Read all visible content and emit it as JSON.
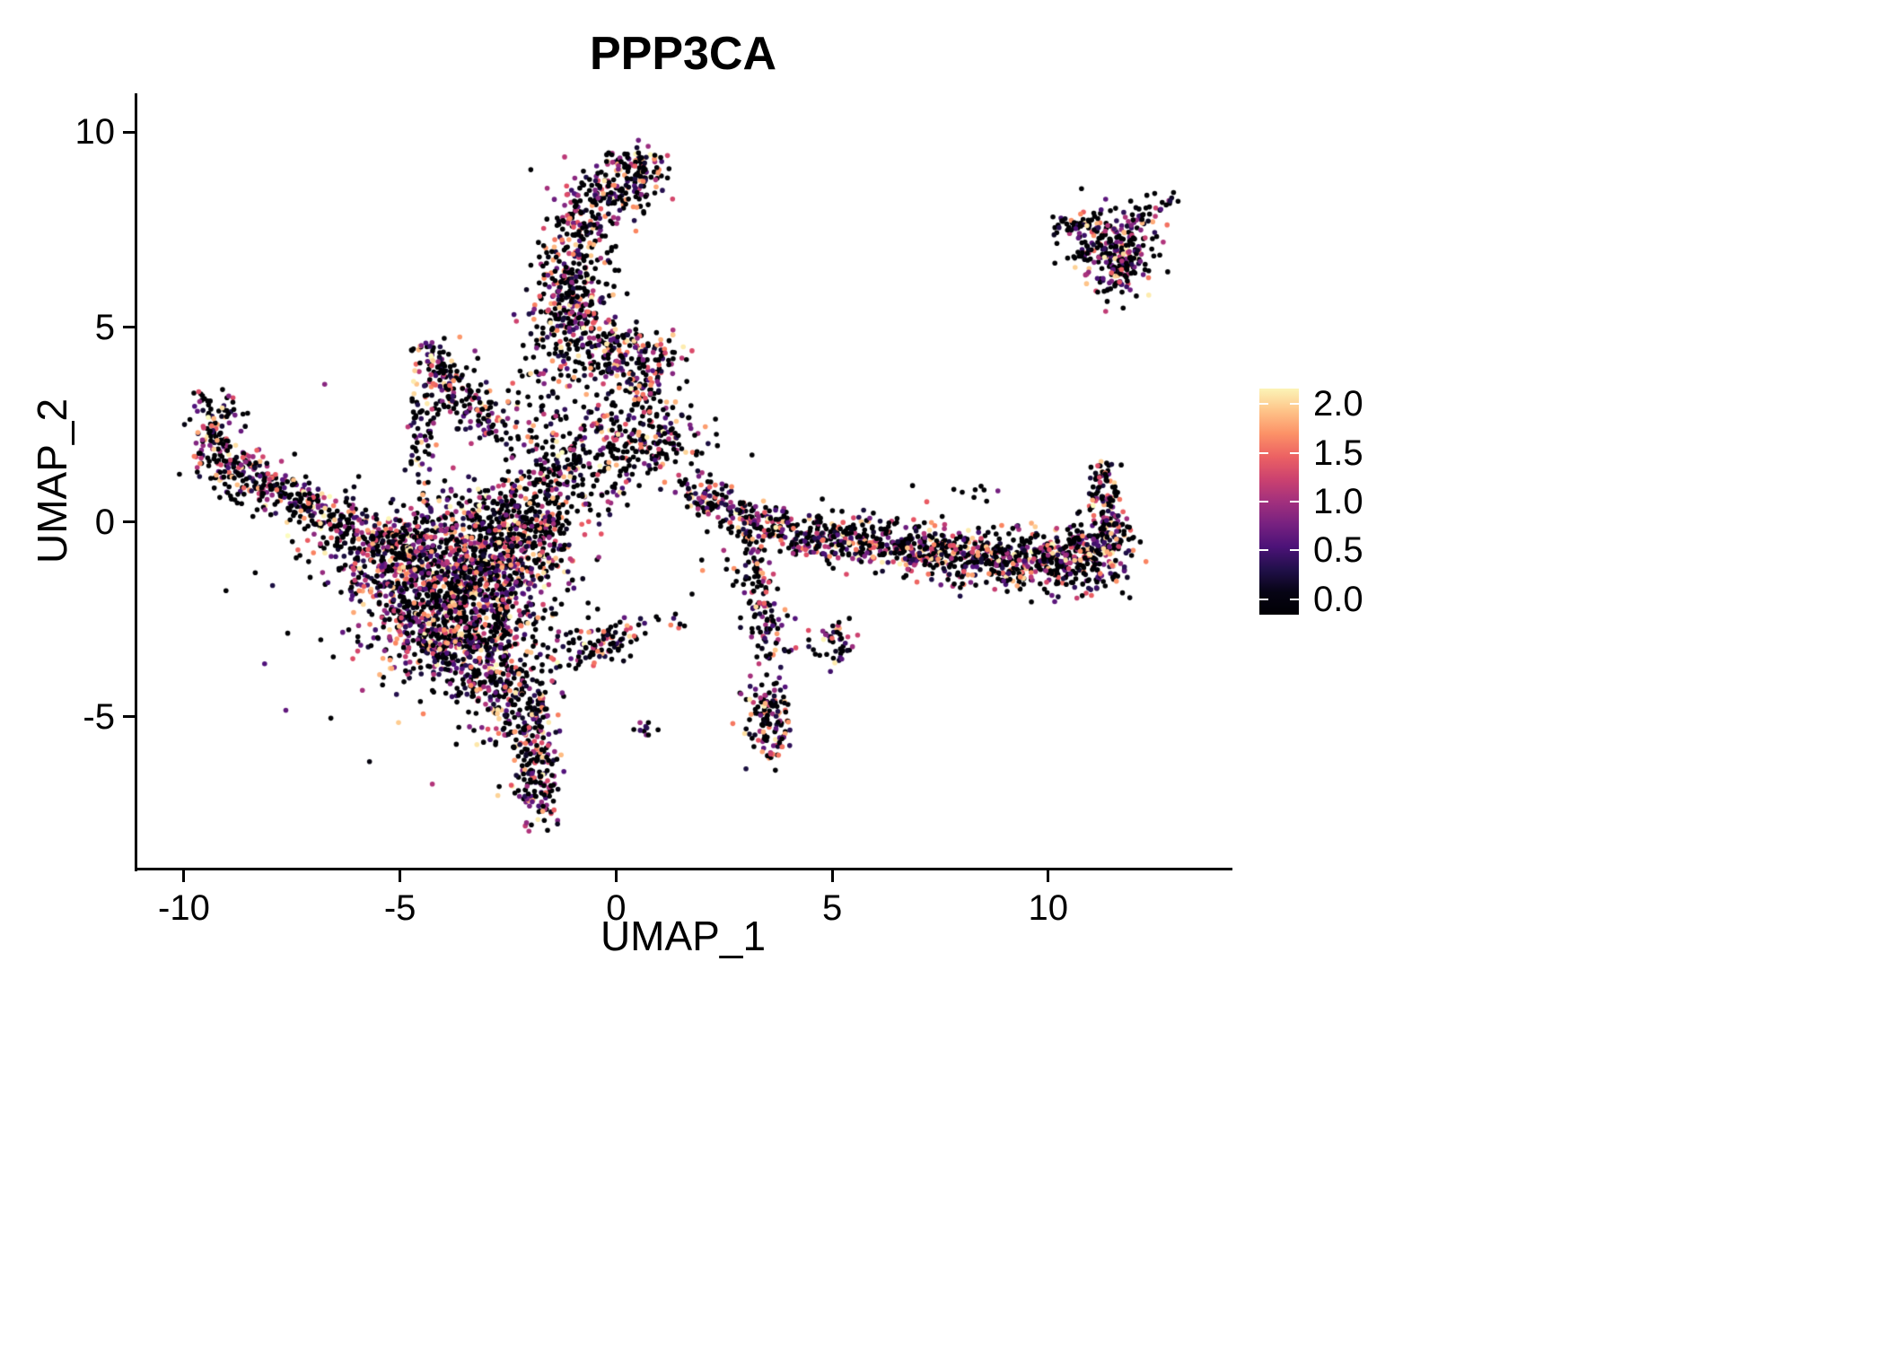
{
  "title": "PPP3CA",
  "chart_data": {
    "type": "scatter",
    "title": "PPP3CA",
    "xlabel": "UMAP_1",
    "ylabel": "UMAP_2",
    "x_ticks": [
      -10,
      -5,
      0,
      5,
      10
    ],
    "x_tick_labels": [
      "-10",
      "-5",
      "0",
      "5",
      "10"
    ],
    "y_ticks": [
      -5,
      0,
      5,
      10
    ],
    "y_tick_labels": [
      "-5",
      "0",
      "5",
      "10"
    ],
    "x_range": [
      -11.1,
      14.2
    ],
    "y_range": [
      -8.9,
      11.0
    ],
    "grid": false,
    "background": "#ffffff",
    "legend": {
      "position": "right",
      "ticks": [
        0.0,
        0.5,
        1.0,
        1.5,
        2.0
      ],
      "tick_labels": [
        "0.0",
        "0.5",
        "1.0",
        "1.5",
        "2.0"
      ],
      "vmin": 0.0,
      "vmax": 2.2,
      "colormap": "magma",
      "colormap_stops": [
        [
          0.0,
          "#000004"
        ],
        [
          0.125,
          "#1c1044"
        ],
        [
          0.25,
          "#4f127b"
        ],
        [
          0.375,
          "#812581"
        ],
        [
          0.5,
          "#b5367a"
        ],
        [
          0.625,
          "#e55064"
        ],
        [
          0.75,
          "#fb8761"
        ],
        [
          0.875,
          "#fec287"
        ],
        [
          1.0,
          "#fcfdbf"
        ]
      ]
    },
    "point_style": {
      "radius": 2.8,
      "zero_color": "#000004"
    },
    "seed": 42,
    "clusters": [
      {
        "name": "top-column",
        "blobs": [
          [
            0.45,
            9.0,
            0.45,
            0.3,
            110,
            0.45
          ],
          [
            -0.2,
            8.4,
            0.55,
            0.4,
            110,
            0.5
          ],
          [
            -0.85,
            7.4,
            0.45,
            0.55,
            130,
            0.5
          ],
          [
            -1.0,
            6.3,
            0.4,
            0.5,
            110,
            0.5
          ],
          [
            -1.05,
            5.4,
            0.5,
            0.5,
            120,
            0.45
          ],
          [
            -0.8,
            4.7,
            0.6,
            0.4,
            100,
            0.45
          ],
          [
            -0.4,
            3.9,
            0.7,
            0.5,
            80,
            0.55
          ],
          [
            0.45,
            4.35,
            0.5,
            0.35,
            80,
            0.4
          ],
          [
            0.6,
            3.6,
            0.5,
            0.4,
            70,
            0.5
          ],
          [
            0.95,
            2.05,
            0.55,
            0.5,
            110,
            0.45
          ],
          [
            0.1,
            2.2,
            0.9,
            0.55,
            130,
            0.5
          ],
          [
            -0.7,
            1.5,
            0.8,
            0.5,
            110,
            0.5
          ],
          [
            -1.6,
            2.9,
            0.4,
            0.9,
            50,
            0.55
          ]
        ]
      },
      {
        "name": "triangle-cluster",
        "blobs": [
          [
            -4.25,
            4.1,
            0.22,
            0.35,
            50,
            0.4
          ],
          [
            -4.0,
            3.5,
            0.4,
            0.4,
            70,
            0.45
          ],
          [
            -3.4,
            3.0,
            0.5,
            0.35,
            60,
            0.45
          ],
          [
            -2.85,
            2.55,
            0.4,
            0.3,
            45,
            0.5
          ],
          [
            -4.5,
            1.9,
            0.18,
            0.7,
            55,
            0.45
          ]
        ]
      },
      {
        "name": "left-arm",
        "blobs": [
          [
            -9.25,
            2.9,
            0.3,
            0.3,
            40,
            0.5
          ],
          [
            -9.4,
            2.2,
            0.25,
            0.4,
            50,
            0.45
          ],
          [
            -9.1,
            1.55,
            0.35,
            0.3,
            55,
            0.45
          ],
          [
            -8.6,
            1.25,
            0.4,
            0.3,
            60,
            0.5
          ],
          [
            -8.1,
            0.95,
            0.4,
            0.3,
            60,
            0.5
          ],
          [
            -7.6,
            0.6,
            0.4,
            0.3,
            55,
            0.5
          ],
          [
            -7.1,
            0.3,
            0.4,
            0.3,
            55,
            0.5
          ],
          [
            -6.55,
            -0.05,
            0.45,
            0.35,
            65,
            0.5
          ],
          [
            -6.0,
            -0.5,
            0.5,
            0.4,
            75,
            0.45
          ]
        ]
      },
      {
        "name": "central-mass",
        "blobs": [
          [
            -5.3,
            -1.0,
            0.6,
            0.55,
            150,
            0.38
          ],
          [
            -4.6,
            -1.5,
            0.75,
            0.75,
            250,
            0.35
          ],
          [
            -3.7,
            -2.2,
            0.75,
            0.75,
            250,
            0.35
          ],
          [
            -4.3,
            -2.9,
            0.65,
            0.6,
            190,
            0.35
          ],
          [
            -3.2,
            -3.2,
            0.6,
            0.6,
            170,
            0.38
          ],
          [
            -2.8,
            -2.3,
            0.6,
            0.6,
            160,
            0.38
          ],
          [
            -2.7,
            -1.3,
            0.65,
            0.6,
            170,
            0.4
          ],
          [
            -2.15,
            -0.6,
            0.55,
            0.5,
            120,
            0.45
          ],
          [
            -3.5,
            -0.8,
            0.7,
            0.5,
            160,
            0.4
          ],
          [
            -4.6,
            -0.3,
            0.65,
            0.4,
            110,
            0.45
          ],
          [
            -3.1,
            0.1,
            0.75,
            0.45,
            130,
            0.45
          ],
          [
            -2.0,
            0.4,
            0.55,
            0.4,
            90,
            0.5
          ],
          [
            -2.9,
            -4.0,
            0.5,
            0.45,
            110,
            0.4
          ],
          [
            -2.3,
            -4.6,
            0.45,
            0.5,
            100,
            0.4
          ],
          [
            -4.0,
            -2.0,
            2.0,
            1.6,
            130,
            0.5
          ],
          [
            -1.6,
            -0.3,
            0.45,
            0.8,
            70,
            0.55
          ],
          [
            -1.3,
            0.9,
            0.7,
            0.7,
            70,
            0.6
          ]
        ]
      },
      {
        "name": "bottom-tail",
        "blobs": [
          [
            -2.0,
            -5.4,
            0.35,
            0.45,
            80,
            0.45
          ],
          [
            -1.8,
            -6.3,
            0.3,
            0.5,
            85,
            0.45
          ],
          [
            -1.8,
            -7.1,
            0.28,
            0.35,
            55,
            0.45
          ]
        ]
      },
      {
        "name": "center-small-arc",
        "blobs": [
          [
            -0.85,
            -3.3,
            0.45,
            0.22,
            45,
            0.45
          ],
          [
            -0.25,
            -3.05,
            0.35,
            0.22,
            35,
            0.5
          ],
          [
            0.3,
            -2.8,
            0.28,
            0.18,
            22,
            0.5
          ],
          [
            1.3,
            -2.6,
            0.2,
            0.15,
            8,
            0.5
          ],
          [
            0.7,
            -5.3,
            0.13,
            0.1,
            10,
            0.6
          ]
        ]
      },
      {
        "name": "right-branch",
        "blobs": [
          [
            1.95,
            0.6,
            0.3,
            0.25,
            40,
            0.45
          ],
          [
            2.5,
            0.4,
            0.4,
            0.28,
            55,
            0.45
          ],
          [
            3.05,
            0.1,
            0.4,
            0.28,
            55,
            0.45
          ],
          [
            3.6,
            -0.15,
            0.45,
            0.3,
            65,
            0.45
          ],
          [
            4.25,
            -0.35,
            0.5,
            0.3,
            70,
            0.45
          ],
          [
            3.25,
            -1.2,
            0.22,
            0.5,
            45,
            0.45
          ],
          [
            3.4,
            -2.2,
            0.28,
            0.5,
            45,
            0.45
          ],
          [
            3.6,
            -3.05,
            0.25,
            0.4,
            40,
            0.4
          ],
          [
            5.0,
            -3.2,
            0.25,
            0.35,
            45,
            0.4
          ],
          [
            3.5,
            -4.8,
            0.28,
            0.4,
            70,
            0.35
          ],
          [
            3.6,
            -5.5,
            0.24,
            0.35,
            60,
            0.35
          ],
          [
            2.6,
            -1.5,
            0.4,
            0.4,
            10,
            0.6
          ]
        ]
      },
      {
        "name": "right-band",
        "blobs": [
          [
            5.05,
            -0.45,
            0.5,
            0.3,
            70,
            0.45
          ],
          [
            5.75,
            -0.55,
            0.5,
            0.3,
            80,
            0.45
          ],
          [
            6.45,
            -0.65,
            0.5,
            0.3,
            80,
            0.45
          ],
          [
            7.15,
            -0.75,
            0.5,
            0.3,
            90,
            0.45
          ],
          [
            7.85,
            -0.85,
            0.5,
            0.32,
            90,
            0.45
          ],
          [
            8.55,
            -0.9,
            0.5,
            0.33,
            100,
            0.42
          ],
          [
            9.25,
            -0.95,
            0.5,
            0.35,
            110,
            0.42
          ],
          [
            9.95,
            -0.95,
            0.5,
            0.38,
            120,
            0.42
          ],
          [
            10.6,
            -0.9,
            0.5,
            0.4,
            130,
            0.42
          ],
          [
            11.2,
            -0.75,
            0.38,
            0.42,
            130,
            0.42
          ],
          [
            11.4,
            -0.1,
            0.18,
            0.4,
            55,
            0.45
          ],
          [
            11.3,
            0.65,
            0.18,
            0.4,
            50,
            0.45
          ],
          [
            11.25,
            1.2,
            0.14,
            0.18,
            22,
            0.5
          ],
          [
            8.1,
            0.8,
            0.5,
            0.2,
            10,
            0.6
          ],
          [
            9.6,
            -1.65,
            1.1,
            0.25,
            30,
            0.5
          ],
          [
            6.2,
            -0.1,
            1.2,
            0.2,
            20,
            0.6
          ]
        ]
      },
      {
        "name": "top-right-cluster",
        "blobs": [
          [
            11.5,
            7.5,
            0.5,
            0.33,
            90,
            0.45
          ],
          [
            11.15,
            7.0,
            0.4,
            0.33,
            70,
            0.45
          ],
          [
            11.8,
            6.85,
            0.4,
            0.38,
            80,
            0.45
          ],
          [
            11.65,
            6.3,
            0.3,
            0.3,
            50,
            0.4
          ],
          [
            10.6,
            7.7,
            0.3,
            0.18,
            28,
            0.5
          ],
          [
            12.3,
            7.9,
            0.22,
            0.18,
            22,
            0.45
          ],
          [
            12.85,
            8.3,
            0.1,
            0.1,
            6,
            0.4
          ]
        ]
      }
    ]
  }
}
